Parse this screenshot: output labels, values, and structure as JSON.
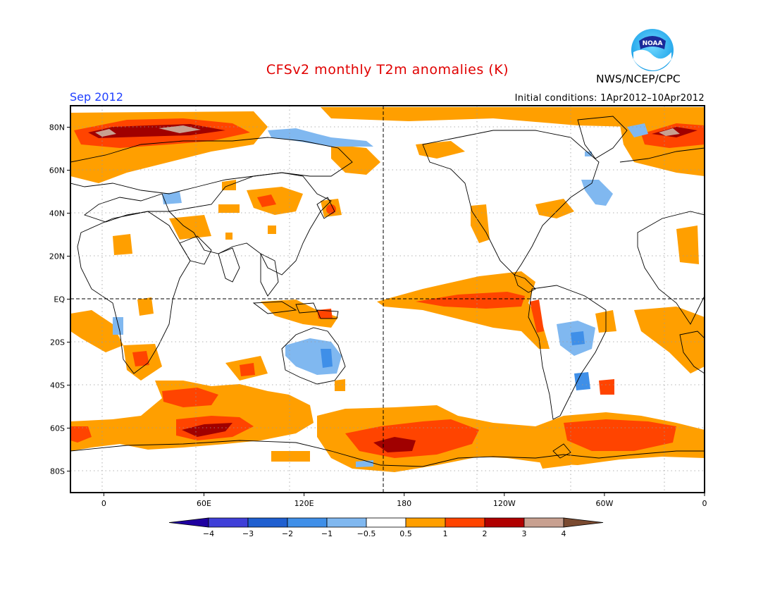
{
  "title": "CFSv2 monthly T2m anomalies (K)",
  "valid_month": "Sep 2012",
  "initial_conditions": "Initial conditions: 1Apr2012–10Apr2012",
  "agency": "NWS/NCEP/CPC",
  "logo": {
    "icon": "noaa-logo-icon",
    "text": "NOAA"
  },
  "lat_labels": [
    "80N",
    "60N",
    "40N",
    "20N",
    "EQ",
    "20S",
    "40S",
    "60S",
    "80S"
  ],
  "lat_values": [
    80,
    60,
    40,
    20,
    0,
    -20,
    -40,
    -60,
    -80
  ],
  "lon_labels": [
    "0",
    "60E",
    "120E",
    "180",
    "120W",
    "60W",
    "0"
  ],
  "lon_values": [
    0,
    60,
    120,
    180,
    240,
    300,
    360
  ],
  "legend": {
    "labels": [
      "−4",
      "−3",
      "−2",
      "−1",
      "−0.5",
      "0.5",
      "1",
      "2",
      "3",
      "4"
    ],
    "colors": [
      "#1f00a0",
      "#3f3fd8",
      "#1f5fd0",
      "#3f8fe8",
      "#80b8f0",
      "#ffffff",
      "#ff9f00",
      "#ff4400",
      "#b00000",
      "#c8a090",
      "#7a4a30"
    ]
  },
  "colors": {
    "orange": "#ff9f00",
    "red": "#ff4400",
    "darkred": "#a00000",
    "tan": "#c8a090",
    "lightblue": "#80b8f0",
    "blue": "#3f8fe8",
    "title_red": "#e00000",
    "month_blue": "#2040ff"
  }
}
